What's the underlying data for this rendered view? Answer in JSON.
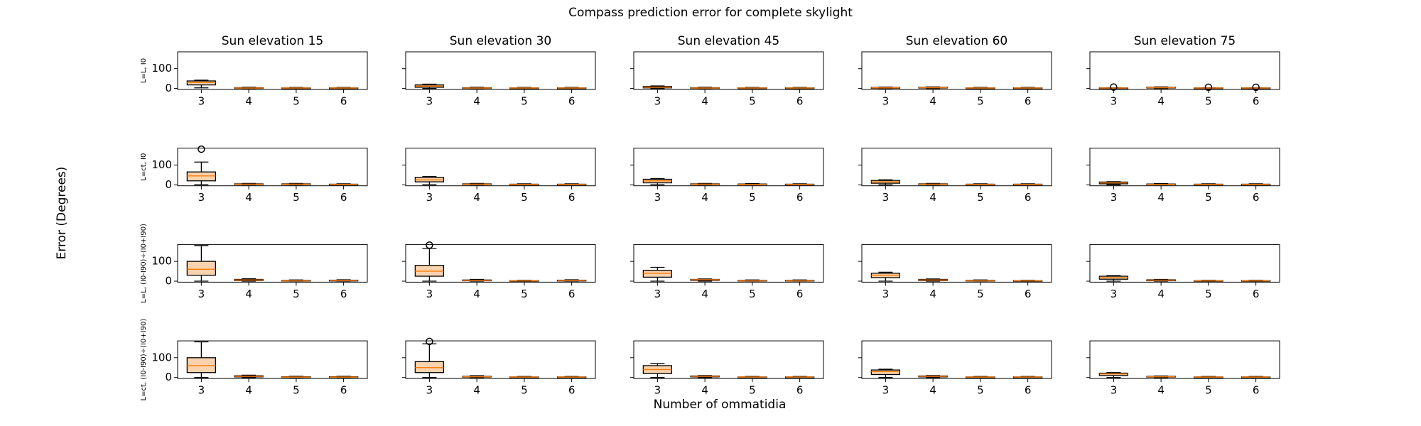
{
  "title": "Compass prediction error for complete skylight",
  "xlabel": "Number of ommatidia",
  "ylabel": "Error (Degrees)",
  "chart_data": [
    {
      "type": "box",
      "title": "Sun elevation 15",
      "ylabel": "L=L, I0",
      "ytick_labels": true,
      "categories": [
        "3",
        "4",
        "5",
        "6"
      ],
      "ylim": [
        -5,
        185
      ],
      "yticks": [
        0,
        100
      ],
      "color": "#f8d3ad",
      "median_color": "#ff7f0e",
      "boxes": [
        {
          "min": 3,
          "q1": 18,
          "median": 30,
          "q3": 38,
          "max": 42
        },
        {
          "min": 0,
          "q1": 1,
          "median": 2,
          "q3": 4,
          "max": 6
        },
        {
          "min": 0,
          "q1": 1,
          "median": 2,
          "q3": 3,
          "max": 5
        },
        {
          "min": 0,
          "q1": 1,
          "median": 2,
          "q3": 3,
          "max": 5
        }
      ]
    },
    {
      "type": "box",
      "title": "Sun elevation 30",
      "ytick_labels": false,
      "categories": [
        "3",
        "4",
        "5",
        "6"
      ],
      "ylim": [
        -5,
        185
      ],
      "yticks": [
        0,
        100
      ],
      "color": "#f8d3ad",
      "median_color": "#ff7f0e",
      "boxes": [
        {
          "min": 0,
          "q1": 6,
          "median": 12,
          "q3": 18,
          "max": 22
        },
        {
          "min": 0,
          "q1": 1,
          "median": 2,
          "q3": 4,
          "max": 6
        },
        {
          "min": 0,
          "q1": 1,
          "median": 2,
          "q3": 3,
          "max": 5
        },
        {
          "min": 0,
          "q1": 1,
          "median": 2,
          "q3": 3,
          "max": 5
        }
      ]
    },
    {
      "type": "box",
      "title": "Sun elevation 45",
      "ytick_labels": false,
      "categories": [
        "3",
        "4",
        "5",
        "6"
      ],
      "ylim": [
        -5,
        185
      ],
      "yticks": [
        0,
        100
      ],
      "color": "#f8d3ad",
      "median_color": "#ff7f0e",
      "boxes": [
        {
          "min": 0,
          "q1": 3,
          "median": 6,
          "q3": 10,
          "max": 13
        },
        {
          "min": 0,
          "q1": 1,
          "median": 2,
          "q3": 4,
          "max": 6
        },
        {
          "min": 0,
          "q1": 1,
          "median": 2,
          "q3": 3,
          "max": 5
        },
        {
          "min": 0,
          "q1": 1,
          "median": 2,
          "q3": 3,
          "max": 5
        }
      ]
    },
    {
      "type": "box",
      "title": "Sun elevation 60",
      "ytick_labels": false,
      "categories": [
        "3",
        "4",
        "5",
        "6"
      ],
      "ylim": [
        -5,
        185
      ],
      "yticks": [
        0,
        100
      ],
      "color": "#f8d3ad",
      "median_color": "#ff7f0e",
      "boxes": [
        {
          "min": 0,
          "q1": 1,
          "median": 3,
          "q3": 5,
          "max": 7
        },
        {
          "min": 0,
          "q1": 2,
          "median": 4,
          "q3": 6,
          "max": 8
        },
        {
          "min": 0,
          "q1": 1,
          "median": 2,
          "q3": 3,
          "max": 5
        },
        {
          "min": 0,
          "q1": 1,
          "median": 2,
          "q3": 3,
          "max": 5
        }
      ]
    },
    {
      "type": "box",
      "title": "Sun elevation 75",
      "ytick_labels": false,
      "categories": [
        "3",
        "4",
        "5",
        "6"
      ],
      "ylim": [
        -5,
        185
      ],
      "yticks": [
        0,
        100
      ],
      "color": "#f8d3ad",
      "median_color": "#ff7f0e",
      "boxes": [
        {
          "min": 0,
          "q1": 1,
          "median": 2,
          "q3": 3,
          "max": 4,
          "outliers": [
            7
          ]
        },
        {
          "min": 0,
          "q1": 2,
          "median": 4,
          "q3": 6,
          "max": 8
        },
        {
          "min": 0,
          "q1": 1,
          "median": 2,
          "q3": 3,
          "max": 4,
          "outliers": [
            6
          ]
        },
        {
          "min": 0,
          "q1": 1,
          "median": 2,
          "q3": 3,
          "max": 4,
          "outliers": [
            6
          ]
        }
      ]
    },
    {
      "type": "box",
      "ylabel": "L=ct, I0",
      "ytick_labels": true,
      "categories": [
        "3",
        "4",
        "5",
        "6"
      ],
      "ylim": [
        -5,
        185
      ],
      "yticks": [
        0,
        100
      ],
      "color": "#f8d3ad",
      "median_color": "#ff7f0e",
      "boxes": [
        {
          "min": 0,
          "q1": 20,
          "median": 45,
          "q3": 65,
          "max": 115,
          "outliers": [
            180
          ]
        },
        {
          "min": 0,
          "q1": 1,
          "median": 3,
          "q3": 5,
          "max": 7
        },
        {
          "min": 0,
          "q1": 1,
          "median": 3,
          "q3": 5,
          "max": 7
        },
        {
          "min": 0,
          "q1": 1,
          "median": 2,
          "q3": 3,
          "max": 5
        }
      ]
    },
    {
      "type": "box",
      "ytick_labels": false,
      "categories": [
        "3",
        "4",
        "5",
        "6"
      ],
      "ylim": [
        -5,
        185
      ],
      "yticks": [
        0,
        100
      ],
      "color": "#f8d3ad",
      "median_color": "#ff7f0e",
      "boxes": [
        {
          "min": 0,
          "q1": 15,
          "median": 25,
          "q3": 38,
          "max": 42
        },
        {
          "min": 0,
          "q1": 1,
          "median": 3,
          "q3": 5,
          "max": 7
        },
        {
          "min": 0,
          "q1": 1,
          "median": 2,
          "q3": 3,
          "max": 5
        },
        {
          "min": 0,
          "q1": 1,
          "median": 2,
          "q3": 3,
          "max": 5
        }
      ]
    },
    {
      "type": "box",
      "ytick_labels": false,
      "categories": [
        "3",
        "4",
        "5",
        "6"
      ],
      "ylim": [
        -5,
        185
      ],
      "yticks": [
        0,
        100
      ],
      "color": "#f8d3ad",
      "median_color": "#ff7f0e",
      "boxes": [
        {
          "min": 0,
          "q1": 10,
          "median": 20,
          "q3": 28,
          "max": 31
        },
        {
          "min": 0,
          "q1": 1,
          "median": 3,
          "q3": 5,
          "max": 7
        },
        {
          "min": 0,
          "q1": 1,
          "median": 2,
          "q3": 4,
          "max": 6
        },
        {
          "min": 0,
          "q1": 1,
          "median": 2,
          "q3": 3,
          "max": 5
        }
      ]
    },
    {
      "type": "box",
      "ytick_labels": false,
      "categories": [
        "3",
        "4",
        "5",
        "6"
      ],
      "ylim": [
        -5,
        185
      ],
      "yticks": [
        0,
        100
      ],
      "color": "#f8d3ad",
      "median_color": "#ff7f0e",
      "boxes": [
        {
          "min": 0,
          "q1": 8,
          "median": 15,
          "q3": 22,
          "max": 25
        },
        {
          "min": 0,
          "q1": 1,
          "median": 3,
          "q3": 5,
          "max": 7
        },
        {
          "min": 0,
          "q1": 1,
          "median": 2,
          "q3": 3,
          "max": 5
        },
        {
          "min": 0,
          "q1": 1,
          "median": 2,
          "q3": 3,
          "max": 5
        }
      ]
    },
    {
      "type": "box",
      "ytick_labels": false,
      "categories": [
        "3",
        "4",
        "5",
        "6"
      ],
      "ylim": [
        -5,
        185
      ],
      "yticks": [
        0,
        100
      ],
      "color": "#f8d3ad",
      "median_color": "#ff7f0e",
      "boxes": [
        {
          "min": 0,
          "q1": 5,
          "median": 10,
          "q3": 14,
          "max": 16
        },
        {
          "min": 0,
          "q1": 1,
          "median": 2,
          "q3": 4,
          "max": 6
        },
        {
          "min": 0,
          "q1": 1,
          "median": 2,
          "q3": 3,
          "max": 5
        },
        {
          "min": 0,
          "q1": 1,
          "median": 2,
          "q3": 3,
          "max": 5
        }
      ]
    },
    {
      "type": "box",
      "ylabel": "L=L, (I0-I90)÷(I0+I90)",
      "ytick_labels": true,
      "categories": [
        "3",
        "4",
        "5",
        "6"
      ],
      "ylim": [
        -5,
        185
      ],
      "yticks": [
        0,
        100
      ],
      "color": "#f8d3ad",
      "median_color": "#ff7f0e",
      "boxes": [
        {
          "min": 0,
          "q1": 30,
          "median": 60,
          "q3": 100,
          "max": 180
        },
        {
          "min": 0,
          "q1": 3,
          "median": 6,
          "q3": 9,
          "max": 12
        },
        {
          "min": 0,
          "q1": 1,
          "median": 2,
          "q3": 4,
          "max": 6
        },
        {
          "min": 0,
          "q1": 1,
          "median": 3,
          "q3": 5,
          "max": 7
        }
      ]
    },
    {
      "type": "box",
      "ytick_labels": false,
      "categories": [
        "3",
        "4",
        "5",
        "6"
      ],
      "ylim": [
        -5,
        185
      ],
      "yticks": [
        0,
        100
      ],
      "color": "#f8d3ad",
      "median_color": "#ff7f0e",
      "boxes": [
        {
          "min": 0,
          "q1": 25,
          "median": 50,
          "q3": 80,
          "max": 165,
          "outliers": [
            182
          ]
        },
        {
          "min": 0,
          "q1": 2,
          "median": 4,
          "q3": 6,
          "max": 9
        },
        {
          "min": 0,
          "q1": 1,
          "median": 2,
          "q3": 3,
          "max": 5
        },
        {
          "min": 0,
          "q1": 1,
          "median": 3,
          "q3": 5,
          "max": 7
        }
      ]
    },
    {
      "type": "box",
      "ytick_labels": false,
      "categories": [
        "3",
        "4",
        "5",
        "6"
      ],
      "ylim": [
        -5,
        185
      ],
      "yticks": [
        0,
        100
      ],
      "color": "#f8d3ad",
      "median_color": "#ff7f0e",
      "boxes": [
        {
          "min": 0,
          "q1": 20,
          "median": 40,
          "q3": 55,
          "max": 70
        },
        {
          "min": 0,
          "q1": 4,
          "median": 7,
          "q3": 9,
          "max": 11
        },
        {
          "min": 0,
          "q1": 1,
          "median": 2,
          "q3": 4,
          "max": 6
        },
        {
          "min": 0,
          "q1": 1,
          "median": 2,
          "q3": 4,
          "max": 6
        }
      ]
    },
    {
      "type": "box",
      "ytick_labels": false,
      "categories": [
        "3",
        "4",
        "5",
        "6"
      ],
      "ylim": [
        -5,
        185
      ],
      "yticks": [
        0,
        100
      ],
      "color": "#f8d3ad",
      "median_color": "#ff7f0e",
      "boxes": [
        {
          "min": 0,
          "q1": 18,
          "median": 30,
          "q3": 40,
          "max": 45
        },
        {
          "min": 0,
          "q1": 3,
          "median": 6,
          "q3": 9,
          "max": 11
        },
        {
          "min": 0,
          "q1": 1,
          "median": 2,
          "q3": 4,
          "max": 6
        },
        {
          "min": 0,
          "q1": 1,
          "median": 2,
          "q3": 3,
          "max": 5
        }
      ]
    },
    {
      "type": "box",
      "ytick_labels": false,
      "categories": [
        "3",
        "4",
        "5",
        "6"
      ],
      "ylim": [
        -5,
        185
      ],
      "yticks": [
        0,
        100
      ],
      "color": "#f8d3ad",
      "median_color": "#ff7f0e",
      "boxes": [
        {
          "min": 0,
          "q1": 10,
          "median": 18,
          "q3": 25,
          "max": 28
        },
        {
          "min": 0,
          "q1": 2,
          "median": 5,
          "q3": 7,
          "max": 9
        },
        {
          "min": 0,
          "q1": 1,
          "median": 2,
          "q3": 3,
          "max": 5
        },
        {
          "min": 0,
          "q1": 1,
          "median": 2,
          "q3": 3,
          "max": 5
        }
      ]
    },
    {
      "type": "box",
      "ylabel": "L=ct, (I0-I90)÷(I0+I90)",
      "ytick_labels": true,
      "categories": [
        "3",
        "4",
        "5",
        "6"
      ],
      "ylim": [
        -5,
        185
      ],
      "yticks": [
        0,
        100
      ],
      "color": "#f8d3ad",
      "median_color": "#ff7f0e",
      "boxes": [
        {
          "min": 0,
          "q1": 25,
          "median": 60,
          "q3": 100,
          "max": 180
        },
        {
          "min": 0,
          "q1": 3,
          "median": 6,
          "q3": 9,
          "max": 12
        },
        {
          "min": 0,
          "q1": 1,
          "median": 2,
          "q3": 4,
          "max": 6
        },
        {
          "min": 0,
          "q1": 1,
          "median": 2,
          "q3": 4,
          "max": 6
        }
      ]
    },
    {
      "type": "box",
      "ytick_labels": false,
      "categories": [
        "3",
        "4",
        "5",
        "6"
      ],
      "ylim": [
        -5,
        185
      ],
      "yticks": [
        0,
        100
      ],
      "color": "#f8d3ad",
      "median_color": "#ff7f0e",
      "boxes": [
        {
          "min": 0,
          "q1": 25,
          "median": 50,
          "q3": 80,
          "max": 170,
          "outliers": [
            182
          ]
        },
        {
          "min": 0,
          "q1": 2,
          "median": 4,
          "q3": 6,
          "max": 9
        },
        {
          "min": 0,
          "q1": 1,
          "median": 2,
          "q3": 3,
          "max": 5
        },
        {
          "min": 0,
          "q1": 1,
          "median": 2,
          "q3": 3,
          "max": 5
        }
      ]
    },
    {
      "type": "box",
      "ytick_labels": false,
      "categories": [
        "3",
        "4",
        "5",
        "6"
      ],
      "ylim": [
        -5,
        185
      ],
      "yticks": [
        0,
        100
      ],
      "color": "#f8d3ad",
      "median_color": "#ff7f0e",
      "boxes": [
        {
          "min": 0,
          "q1": 20,
          "median": 40,
          "q3": 60,
          "max": 70
        },
        {
          "min": 0,
          "q1": 3,
          "median": 6,
          "q3": 8,
          "max": 10
        },
        {
          "min": 0,
          "q1": 1,
          "median": 2,
          "q3": 3,
          "max": 5
        },
        {
          "min": 0,
          "q1": 1,
          "median": 2,
          "q3": 3,
          "max": 5
        }
      ]
    },
    {
      "type": "box",
      "ytick_labels": false,
      "categories": [
        "3",
        "4",
        "5",
        "6"
      ],
      "ylim": [
        -5,
        185
      ],
      "yticks": [
        0,
        100
      ],
      "color": "#f8d3ad",
      "median_color": "#ff7f0e",
      "boxes": [
        {
          "min": 0,
          "q1": 15,
          "median": 30,
          "q3": 38,
          "max": 42
        },
        {
          "min": 0,
          "q1": 3,
          "median": 6,
          "q3": 8,
          "max": 10
        },
        {
          "min": 0,
          "q1": 1,
          "median": 2,
          "q3": 3,
          "max": 5
        },
        {
          "min": 0,
          "q1": 1,
          "median": 2,
          "q3": 3,
          "max": 5
        }
      ]
    },
    {
      "type": "box",
      "ytick_labels": false,
      "categories": [
        "3",
        "4",
        "5",
        "6"
      ],
      "ylim": [
        -5,
        185
      ],
      "yticks": [
        0,
        100
      ],
      "color": "#f8d3ad",
      "median_color": "#ff7f0e",
      "boxes": [
        {
          "min": 0,
          "q1": 10,
          "median": 18,
          "q3": 22,
          "max": 25
        },
        {
          "min": 0,
          "q1": 2,
          "median": 4,
          "q3": 6,
          "max": 8
        },
        {
          "min": 0,
          "q1": 1,
          "median": 2,
          "q3": 3,
          "max": 5
        },
        {
          "min": 0,
          "q1": 1,
          "median": 2,
          "q3": 3,
          "max": 5
        }
      ]
    }
  ]
}
